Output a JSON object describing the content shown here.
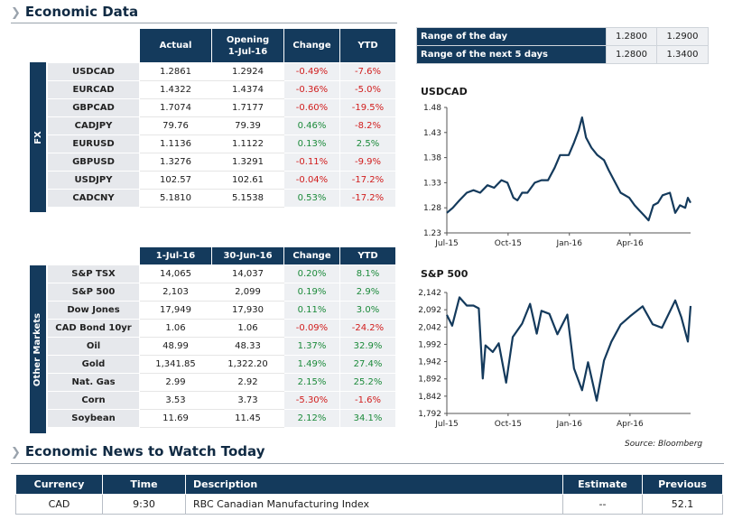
{
  "economic_data": {
    "title": "Economic Data",
    "fx": {
      "side_label": "FX",
      "headers": [
        "Actual",
        "Opening\n1-Jul-16",
        "Change",
        "YTD"
      ],
      "rows": [
        {
          "label": "USDCAD",
          "a": "1.2861",
          "b": "1.2924",
          "chg": "-0.49%",
          "ytd": "-7.6%"
        },
        {
          "label": "EURCAD",
          "a": "1.4322",
          "b": "1.4374",
          "chg": "-0.36%",
          "ytd": "-5.0%"
        },
        {
          "label": "GBPCAD",
          "a": "1.7074",
          "b": "1.7177",
          "chg": "-0.60%",
          "ytd": "-19.5%"
        },
        {
          "label": "CADJPY",
          "a": "79.76",
          "b": "79.39",
          "chg": "0.46%",
          "ytd": "-8.2%"
        },
        {
          "label": "EURUSD",
          "a": "1.1136",
          "b": "1.1122",
          "chg": "0.13%",
          "ytd": "2.5%"
        },
        {
          "label": "GBPUSD",
          "a": "1.3276",
          "b": "1.3291",
          "chg": "-0.11%",
          "ytd": "-9.9%"
        },
        {
          "label": "USDJPY",
          "a": "102.57",
          "b": "102.61",
          "chg": "-0.04%",
          "ytd": "-17.2%"
        },
        {
          "label": "CADCNY",
          "a": "5.1810",
          "b": "5.1538",
          "chg": "0.53%",
          "ytd": "-17.2%"
        }
      ]
    },
    "other": {
      "side_label": "Other Markets",
      "headers": [
        "1-Jul-16",
        "30-Jun-16",
        "Change",
        "YTD"
      ],
      "rows": [
        {
          "label": "S&P TSX",
          "a": "14,065",
          "b": "14,037",
          "chg": "0.20%",
          "ytd": "8.1%"
        },
        {
          "label": "S&P 500",
          "a": "2,103",
          "b": "2,099",
          "chg": "0.19%",
          "ytd": "2.9%"
        },
        {
          "label": "Dow Jones",
          "a": "17,949",
          "b": "17,930",
          "chg": "0.11%",
          "ytd": "3.0%"
        },
        {
          "label": "CAD Bond 10yr",
          "a": "1.06",
          "b": "1.06",
          "chg": "-0.09%",
          "ytd": "-24.2%"
        },
        {
          "label": "Oil",
          "a": "48.99",
          "b": "48.33",
          "chg": "1.37%",
          "ytd": "32.9%"
        },
        {
          "label": "Gold",
          "a": "1,341.85",
          "b": "1,322.20",
          "chg": "1.49%",
          "ytd": "27.4%"
        },
        {
          "label": "Nat. Gas",
          "a": "2.99",
          "b": "2.92",
          "chg": "2.15%",
          "ytd": "25.2%"
        },
        {
          "label": "Corn",
          "a": "3.53",
          "b": "3.73",
          "chg": "-5.30%",
          "ytd": "-1.6%"
        },
        {
          "label": "Soybean",
          "a": "11.69",
          "b": "11.45",
          "chg": "2.12%",
          "ytd": "34.1%"
        }
      ]
    },
    "range": [
      {
        "label": "Range of the day",
        "low": "1.2800",
        "high": "1.2900"
      },
      {
        "label": "Range of the next 5 days",
        "low": "1.2800",
        "high": "1.3400"
      }
    ]
  },
  "chart_data": [
    {
      "type": "line",
      "title": "USDCAD",
      "x_ticks": [
        "Jul-15",
        "Oct-15",
        "Jan-16",
        "Apr-16"
      ],
      "y_ticks": [
        "1.48",
        "1.43",
        "1.38",
        "1.33",
        "1.28",
        "1.23"
      ],
      "ylim": [
        1.23,
        1.48
      ],
      "grid": false,
      "series": [
        {
          "color": "#143a5c",
          "x": [
            "2015-07-01",
            "2015-07-10",
            "2015-07-20",
            "2015-07-31",
            "2015-08-10",
            "2015-08-20",
            "2015-08-31",
            "2015-09-10",
            "2015-09-21",
            "2015-09-30",
            "2015-10-09",
            "2015-10-15",
            "2015-10-22",
            "2015-10-30",
            "2015-11-10",
            "2015-11-20",
            "2015-11-30",
            "2015-12-10",
            "2015-12-18",
            "2015-12-31",
            "2016-01-08",
            "2016-01-15",
            "2016-01-20",
            "2016-01-26",
            "2016-02-03",
            "2016-02-12",
            "2016-02-22",
            "2016-02-29",
            "2016-03-10",
            "2016-03-18",
            "2016-03-31",
            "2016-04-08",
            "2016-04-15",
            "2016-04-22",
            "2016-04-29",
            "2016-05-06",
            "2016-05-13",
            "2016-05-20",
            "2016-05-31",
            "2016-06-08",
            "2016-06-15",
            "2016-06-23",
            "2016-06-27",
            "2016-07-01"
          ],
          "y": [
            1.27,
            1.28,
            1.295,
            1.31,
            1.315,
            1.31,
            1.325,
            1.32,
            1.335,
            1.33,
            1.3,
            1.295,
            1.31,
            1.31,
            1.33,
            1.335,
            1.335,
            1.36,
            1.385,
            1.385,
            1.41,
            1.435,
            1.46,
            1.42,
            1.4,
            1.385,
            1.375,
            1.355,
            1.33,
            1.31,
            1.3,
            1.285,
            1.275,
            1.265,
            1.255,
            1.285,
            1.29,
            1.305,
            1.31,
            1.27,
            1.285,
            1.28,
            1.3,
            1.29
          ]
        }
      ]
    },
    {
      "type": "line",
      "title": "S&P 500",
      "x_ticks": [
        "Jul-15",
        "Oct-15",
        "Jan-16",
        "Apr-16"
      ],
      "y_ticks": [
        "2,142",
        "2,092",
        "2,042",
        "1,992",
        "1,942",
        "1,892",
        "1,842",
        "1,792"
      ],
      "ylim": [
        1792,
        2142
      ],
      "grid": false,
      "series": [
        {
          "color": "#143a5c",
          "x": [
            "2015-07-01",
            "2015-07-09",
            "2015-07-20",
            "2015-07-31",
            "2015-08-10",
            "2015-08-18",
            "2015-08-24",
            "2015-08-28",
            "2015-09-08",
            "2015-09-17",
            "2015-09-28",
            "2015-10-08",
            "2015-10-22",
            "2015-11-03",
            "2015-11-13",
            "2015-11-20",
            "2015-12-02",
            "2015-12-14",
            "2015-12-29",
            "2016-01-08",
            "2016-01-20",
            "2016-01-29",
            "2016-02-11",
            "2016-02-22",
            "2016-03-04",
            "2016-03-18",
            "2016-04-01",
            "2016-04-20",
            "2016-05-05",
            "2016-05-19",
            "2016-06-08",
            "2016-06-17",
            "2016-06-27",
            "2016-07-01"
          ],
          "y": [
            2077,
            2046,
            2128,
            2104,
            2104,
            2096,
            1893,
            1989,
            1970,
            1995,
            1881,
            2013,
            2052,
            2109,
            2023,
            2089,
            2080,
            2021,
            2078,
            1922,
            1859,
            1940,
            1829,
            1945,
            1999,
            2049,
            2073,
            2102,
            2050,
            2040,
            2119,
            2071,
            2000,
            2103
          ]
        }
      ]
    }
  ],
  "source": "Source: Bloomberg",
  "news": {
    "title": "Economic News to Watch Today",
    "headers": [
      "Currency",
      "Time",
      "Description",
      "Estimate",
      "Previous"
    ],
    "rows": [
      {
        "currency": "CAD",
        "time": "9:30",
        "description": "RBC Canadian Manufacturing Index",
        "estimate": "--",
        "previous": "52.1"
      }
    ]
  }
}
